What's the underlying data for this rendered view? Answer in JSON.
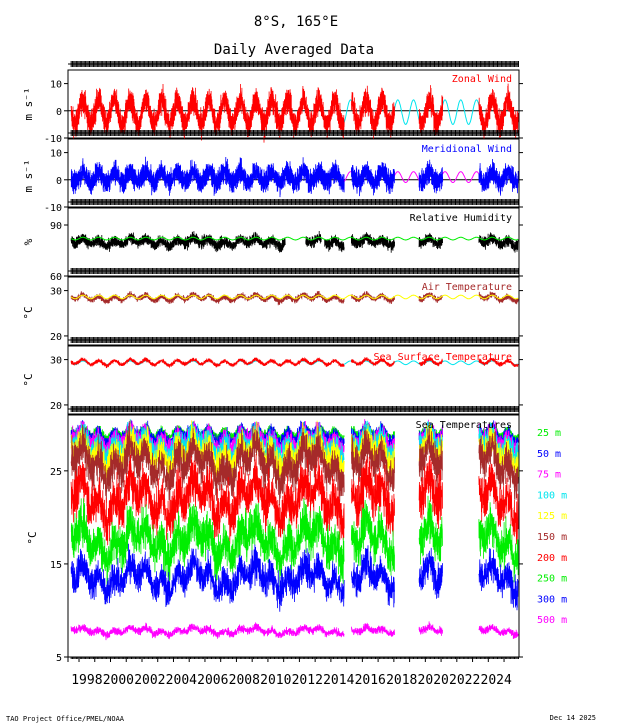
{
  "header": {
    "location": "8°S, 165°E",
    "subtitle": "Daily Averaged Data"
  },
  "footer": {
    "credit": "TAO Project Office/PMEL/NOAA",
    "date": "Dec 14 2025"
  },
  "chart_data": [
    {
      "type": "line",
      "title": "Zonal Wind",
      "ylabel": "m s⁻¹",
      "ylim": [
        -10,
        15
      ],
      "yticks": [
        "10",
        "0",
        "-10"
      ],
      "series": [],
      "colors": {
        "data": "#ff0000",
        "climatology": "#00e5ee"
      }
    },
    {
      "type": "line",
      "title": "Meridional Wind",
      "ylabel": "m s⁻¹",
      "ylim": [
        -10,
        15
      ],
      "yticks": [
        "10",
        "0",
        "-10"
      ],
      "series": [],
      "colors": {
        "data": "#0000ff",
        "climatology": "#ff00ff"
      }
    },
    {
      "type": "line",
      "title": "Relative Humidity",
      "ylabel": "%",
      "ylim": [
        60,
        100
      ],
      "yticks": [
        "90",
        "60"
      ],
      "series": [],
      "colors": {
        "data": "#000000",
        "climatology": "#00ee00"
      }
    },
    {
      "type": "line",
      "title": "Air Temperature",
      "ylabel": "°C",
      "ylim": [
        18,
        33
      ],
      "yticks": [
        "30",
        "20"
      ],
      "series": [],
      "colors": {
        "data": "#a52a2a",
        "climatology": "#ffff00"
      }
    },
    {
      "type": "line",
      "title": "Sea Surface Temperature",
      "ylabel": "°C",
      "ylim": [
        18,
        33
      ],
      "yticks": [
        "30",
        "20"
      ],
      "series": [],
      "colors": {
        "data": "#ff0000",
        "climatology": "#00e5ee"
      }
    },
    {
      "type": "line",
      "title": "Sea Temperatures",
      "ylabel": "°C",
      "ylim": [
        5,
        31
      ],
      "yticks": [
        "25",
        "15",
        "5"
      ],
      "x": [
        "1998",
        "2000",
        "2002",
        "2004",
        "2006",
        "2008",
        "2010",
        "2012",
        "2014",
        "2016",
        "2018",
        "2020",
        "2022",
        "2024"
      ],
      "series": [
        {
          "name": "25 m",
          "color": "#00ee00",
          "mean": 29.2
        },
        {
          "name": "50 m",
          "color": "#0000ff",
          "mean": 28.9
        },
        {
          "name": "75 m",
          "color": "#ff00ff",
          "mean": 28.4
        },
        {
          "name": "100 m",
          "color": "#00e5ee",
          "mean": 27.8
        },
        {
          "name": "125 m",
          "color": "#ffff00",
          "mean": 27.0
        },
        {
          "name": "150 m",
          "color": "#a52a2a",
          "mean": 25.8
        },
        {
          "name": "200 m",
          "color": "#ff0000",
          "mean": 22.0
        },
        {
          "name": "250 m",
          "color": "#00ee00",
          "mean": 17.5
        },
        {
          "name": "300 m",
          "color": "#0000ff",
          "mean": 13.5
        },
        {
          "name": "500 m",
          "color": "#ff00ff",
          "mean": 7.8
        }
      ]
    }
  ]
}
